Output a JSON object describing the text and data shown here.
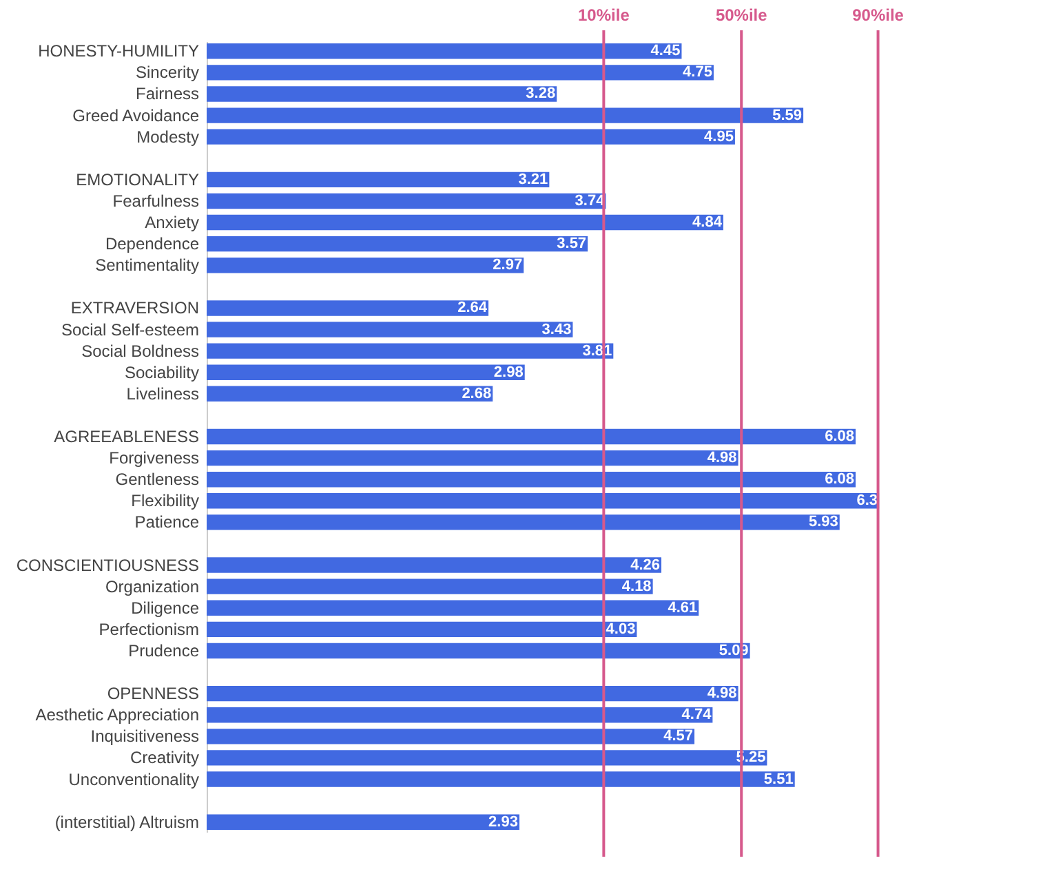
{
  "chart_data": {
    "type": "bar",
    "orientation": "horizontal",
    "color": "#4169e1",
    "data_labels": true,
    "tick_labels": "y",
    "xlim": [
      0,
      7.9
    ],
    "categories": [
      "HONESTY-HUMILITY",
      "Sincerity",
      "Fairness",
      "Greed Avoidance",
      "Modesty",
      null,
      "EMOTIONALITY",
      "Fearfulness",
      "Anxiety",
      "Dependence",
      "Sentimentality",
      null,
      "EXTRAVERSION",
      "Social Self-esteem",
      "Social Boldness",
      "Sociability",
      "Liveliness",
      null,
      "AGREEABLENESS",
      "Forgiveness",
      "Gentleness",
      "Flexibility",
      "Patience",
      null,
      "CONSCIENTIOUSNESS",
      "Organization",
      "Diligence",
      "Perfectionism",
      "Prudence",
      null,
      "OPENNESS",
      "Aesthetic Appreciation",
      "Inquisitiveness",
      "Creativity",
      "Unconventionality",
      null,
      "(interstitial) Altruism"
    ],
    "values": [
      4.45,
      4.75,
      3.28,
      5.59,
      4.95,
      null,
      3.21,
      3.74,
      4.84,
      3.57,
      2.97,
      null,
      2.64,
      3.43,
      3.81,
      2.98,
      2.68,
      null,
      6.08,
      4.98,
      6.08,
      6.3,
      5.93,
      null,
      4.26,
      4.18,
      4.61,
      4.03,
      5.09,
      null,
      4.98,
      4.74,
      4.57,
      5.25,
      5.51,
      null,
      2.93
    ],
    "ref_lines": [
      {
        "axis": "x",
        "value": 3.72,
        "label": "10%ile",
        "color": "#d6598c"
      },
      {
        "axis": "x",
        "value": 5.01,
        "label": "50%ile",
        "color": "#d6598c"
      },
      {
        "axis": "x",
        "value": 6.29,
        "label": "90%ile",
        "color": "#d6598c"
      }
    ]
  }
}
